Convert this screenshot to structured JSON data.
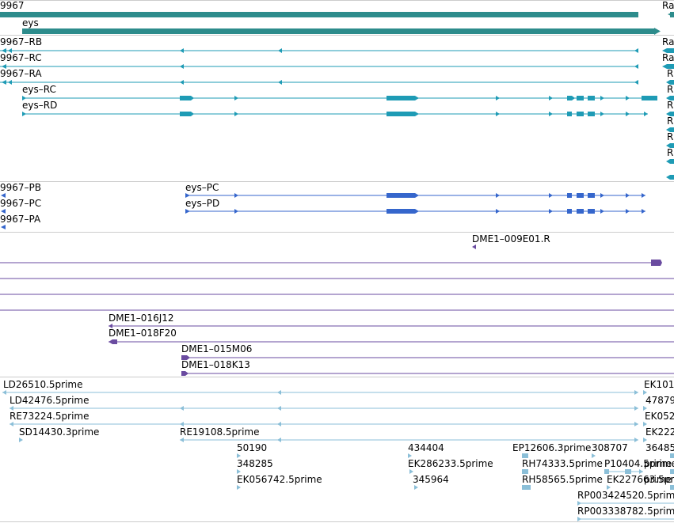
{
  "colors": {
    "gene": "#2d8c8c",
    "mrna_cyan": "#1e9bb5",
    "mrna_blue": "#3566cc",
    "clone": "#6a4ba0",
    "est": "#8bbfd8",
    "divider": "#cccccc"
  },
  "labels": {
    "gene_left": "9967",
    "gene_right": "Ra",
    "gene_eys": "eys",
    "tx_rb": "9967–RB",
    "tx_rc": "9967–RC",
    "tx_ra": "9967–RA",
    "tx_eys_rc": "eys–RC",
    "tx_eys_rd": "eys–RD",
    "right_ra_1": "Ra",
    "right_ra_2": "Ra",
    "right_r_1": "R",
    "right_r_2": "R",
    "right_r_3": "R",
    "right_r_4": "R",
    "right_r_5": "R",
    "right_r_6": "R",
    "pp_pb": "9967–PB",
    "pp_pc": "9967–PC",
    "pp_pa": "9967–PA",
    "pp_eys_pc": "eys–PC",
    "pp_eys_pd": "eys–PD",
    "clone_009e01": "DME1–009E01.R",
    "clone_016j12": "DME1–016J12",
    "clone_018f20": "DME1–018F20",
    "clone_015m06": "DME1–015M06",
    "clone_018k13": "DME1–018K13",
    "est_ld26510": "LD26510.5prime",
    "est_ld42476": "LD42476.5prime",
    "est_re73224": "RE73224.5prime",
    "est_sd14430": "SD14430.3prime",
    "est_re19108": "RE19108.5prime",
    "est_50190": "50190",
    "est_348285": "348285",
    "est_ek056742": "EK056742.5prime",
    "est_434404": "434404",
    "est_ek286233": "EK286233.5prime",
    "est_345964": "345964",
    "est_ep12606": "EP12606.3prime",
    "est_308707": "308707",
    "est_rh74333": "RH74333.5prime",
    "est_p10404": "P10404.5prime",
    "est_rh58565": "RH58565.5prime",
    "est_ek227663": "EK227663.5prime",
    "est_rp003424520": "RP003424520.5prime",
    "est_rp003338782": "RP003338782.5prime",
    "est_r_ek101": "EK101",
    "est_r_47879": "47879",
    "est_r_ek052": "EK052",
    "est_r_ek222": "EK222",
    "est_r_36485": "36485",
    "est_r_primeA": "prime",
    "est_r_primeB": "prime"
  }
}
